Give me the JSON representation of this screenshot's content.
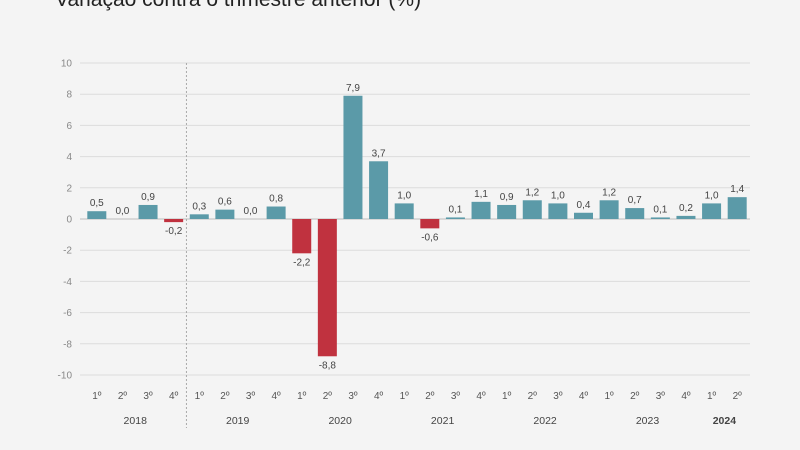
{
  "title": "Variação contra o trimestre anterior (%)",
  "chart_data": {
    "type": "bar",
    "title": "Variação contra o trimestre anterior (%)",
    "xlabel": "",
    "ylabel": "",
    "ylim": [
      -10,
      10
    ],
    "yticks": [
      "10",
      "8",
      "6",
      "4",
      "2",
      "0",
      "-2",
      "-4",
      "-6",
      "-8",
      "-10"
    ],
    "grid": true,
    "legend": "none",
    "colors": {
      "positive": "#5b9aa8",
      "negative": "#c0323f",
      "grid": "#dcdcdc",
      "axis": "#bdbdbd"
    },
    "categories": [
      "1º",
      "2º",
      "3º",
      "4º",
      "1º",
      "2º",
      "3º",
      "4º",
      "1º",
      "2º",
      "3º",
      "4º",
      "1º",
      "2º",
      "3º",
      "4º",
      "1º",
      "2º",
      "3º",
      "4º",
      "1º",
      "2º",
      "3º",
      "4º",
      "1º",
      "2º"
    ],
    "values": [
      0.5,
      0.0,
      0.9,
      -0.2,
      0.3,
      0.6,
      0.0,
      0.8,
      -2.2,
      -8.8,
      7.9,
      3.7,
      1.0,
      -0.6,
      0.1,
      1.1,
      0.9,
      1.2,
      1.0,
      0.4,
      1.2,
      0.7,
      0.1,
      0.2,
      1.0,
      1.4
    ],
    "value_labels": [
      "0,5",
      "0,0",
      "0,9",
      "-0,2",
      "0,3",
      "0,6",
      "0,0",
      "0,8",
      "-2,2",
      "-8,8",
      "7,9",
      "3,7",
      "1,0",
      "-0,6",
      "0,1",
      "1,1",
      "0,9",
      "1,2",
      "1,0",
      "0,4",
      "1,2",
      "0,7",
      "0,1",
      "0,2",
      "1,0",
      "1,4"
    ],
    "years": [
      {
        "label": "2018",
        "start": 0,
        "end": 3,
        "bold": false
      },
      {
        "label": "2019",
        "start": 4,
        "end": 7,
        "bold": false
      },
      {
        "label": "2020",
        "start": 8,
        "end": 11,
        "bold": false
      },
      {
        "label": "2021",
        "start": 12,
        "end": 15,
        "bold": false
      },
      {
        "label": "2022",
        "start": 16,
        "end": 19,
        "bold": false
      },
      {
        "label": "2023",
        "start": 20,
        "end": 23,
        "bold": false
      },
      {
        "label": "2024",
        "start": 24,
        "end": 25,
        "bold": true
      }
    ]
  }
}
